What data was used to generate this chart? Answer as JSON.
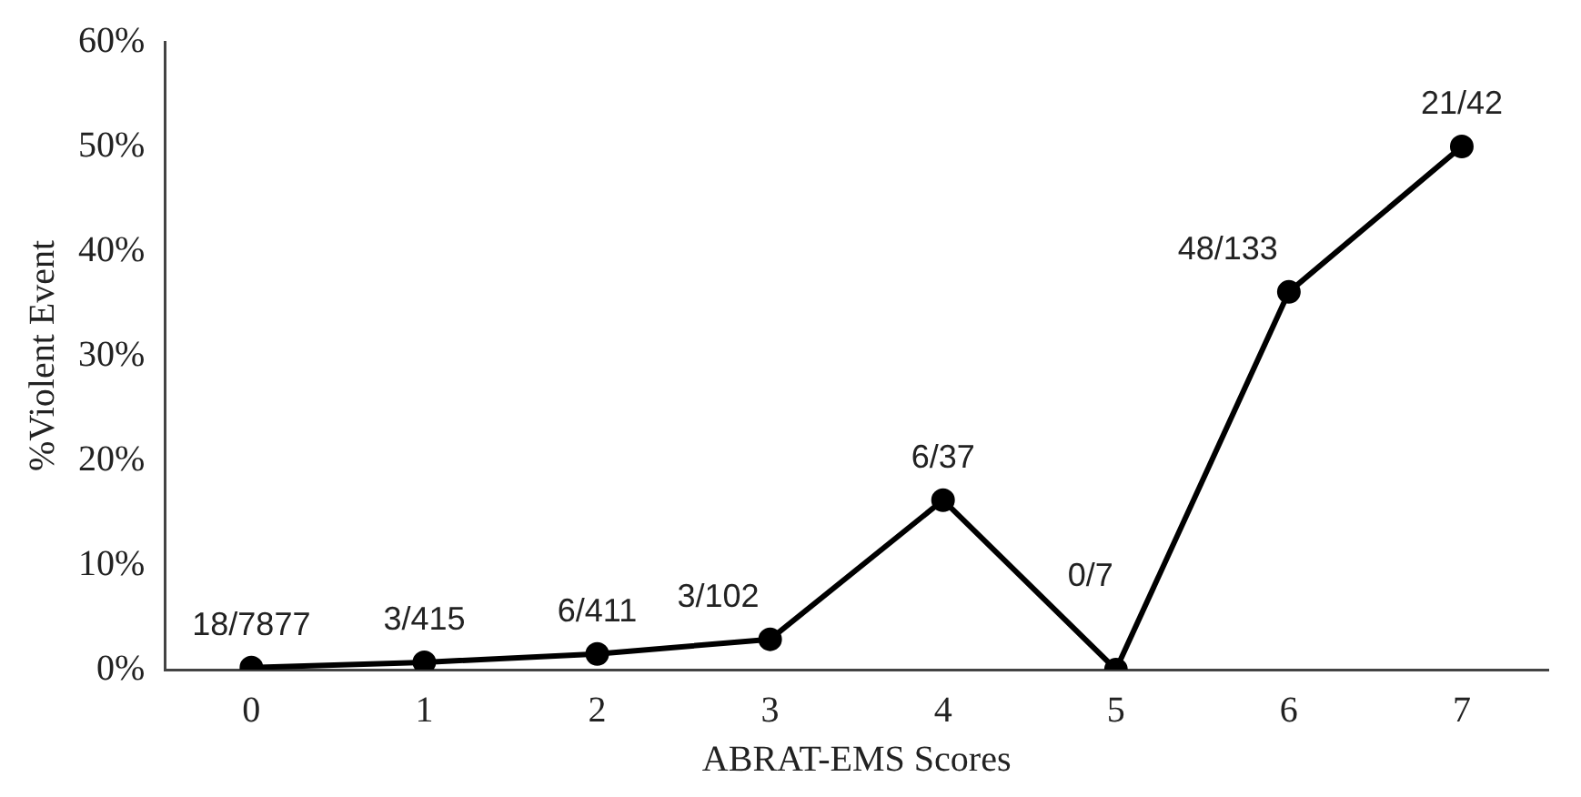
{
  "chart_data": {
    "type": "line",
    "xlabel": "ABRAT-EMS Scores",
    "ylabel": "%Violent Event",
    "categories": [
      "0",
      "1",
      "2",
      "3",
      "4",
      "5",
      "6",
      "7"
    ],
    "series": [
      {
        "color": "#000000",
        "values": [
          0.2,
          0.7,
          1.5,
          2.9,
          16.2,
          0,
          36.1,
          50
        ],
        "value_labels": [
          "18/7877",
          "3/415",
          "6/411",
          "3/102",
          "6/37",
          "0/7",
          "48/133",
          "21/42"
        ]
      }
    ],
    "ylim": [
      0,
      60
    ],
    "yticks": [
      {
        "value": 0,
        "label": "0%"
      },
      {
        "value": 10,
        "label": "10%"
      },
      {
        "value": 20,
        "label": "20%"
      },
      {
        "value": 30,
        "label": "30%"
      },
      {
        "value": 40,
        "label": "40%"
      },
      {
        "value": 50,
        "label": "50%"
      },
      {
        "value": 60,
        "label": "60%"
      }
    ],
    "grid": false,
    "legend": false,
    "marker": "circle",
    "line_style": "solid"
  }
}
